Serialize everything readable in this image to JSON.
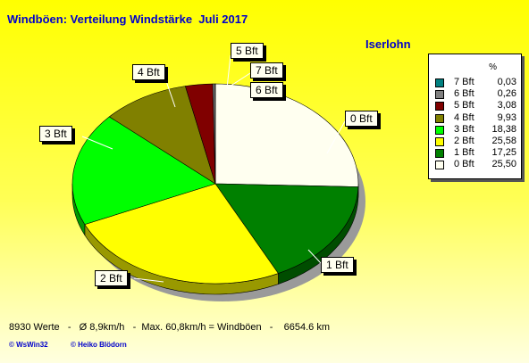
{
  "title": "Windböen: Verteilung Windstärke  Juli 2017",
  "location": "Iserlohn",
  "legend_header": "%",
  "chart_data": {
    "type": "pie",
    "title": "Windböen: Verteilung Windstärke  Juli 2017",
    "categories": [
      "7 Bft",
      "6 Bft",
      "5 Bft",
      "4 Bft",
      "3 Bft",
      "2 Bft",
      "1 Bft",
      "0 Bft"
    ],
    "values": [
      0.03,
      0.26,
      3.08,
      9.93,
      18.38,
      25.58,
      17.25,
      25.5
    ],
    "value_labels": [
      "0,03",
      "0,26",
      "3,08",
      "9,93",
      "18,38",
      "25,58",
      "17,25",
      "25,50"
    ],
    "colors": [
      "#008080",
      "#808080",
      "#800000",
      "#808000",
      "#00ff00",
      "#ffff00",
      "#008000",
      "#fffff0"
    ],
    "start": "top, clockwise from 0 Bft",
    "legend_position": "right"
  },
  "stats_line": "8930 Werte   -   Ø 8,9km/h   -  Max. 60,8km/h = Windböen   -    6654.6 km",
  "credit_left": "© WsWin32",
  "credit_right": "© Heiko Blödorn"
}
